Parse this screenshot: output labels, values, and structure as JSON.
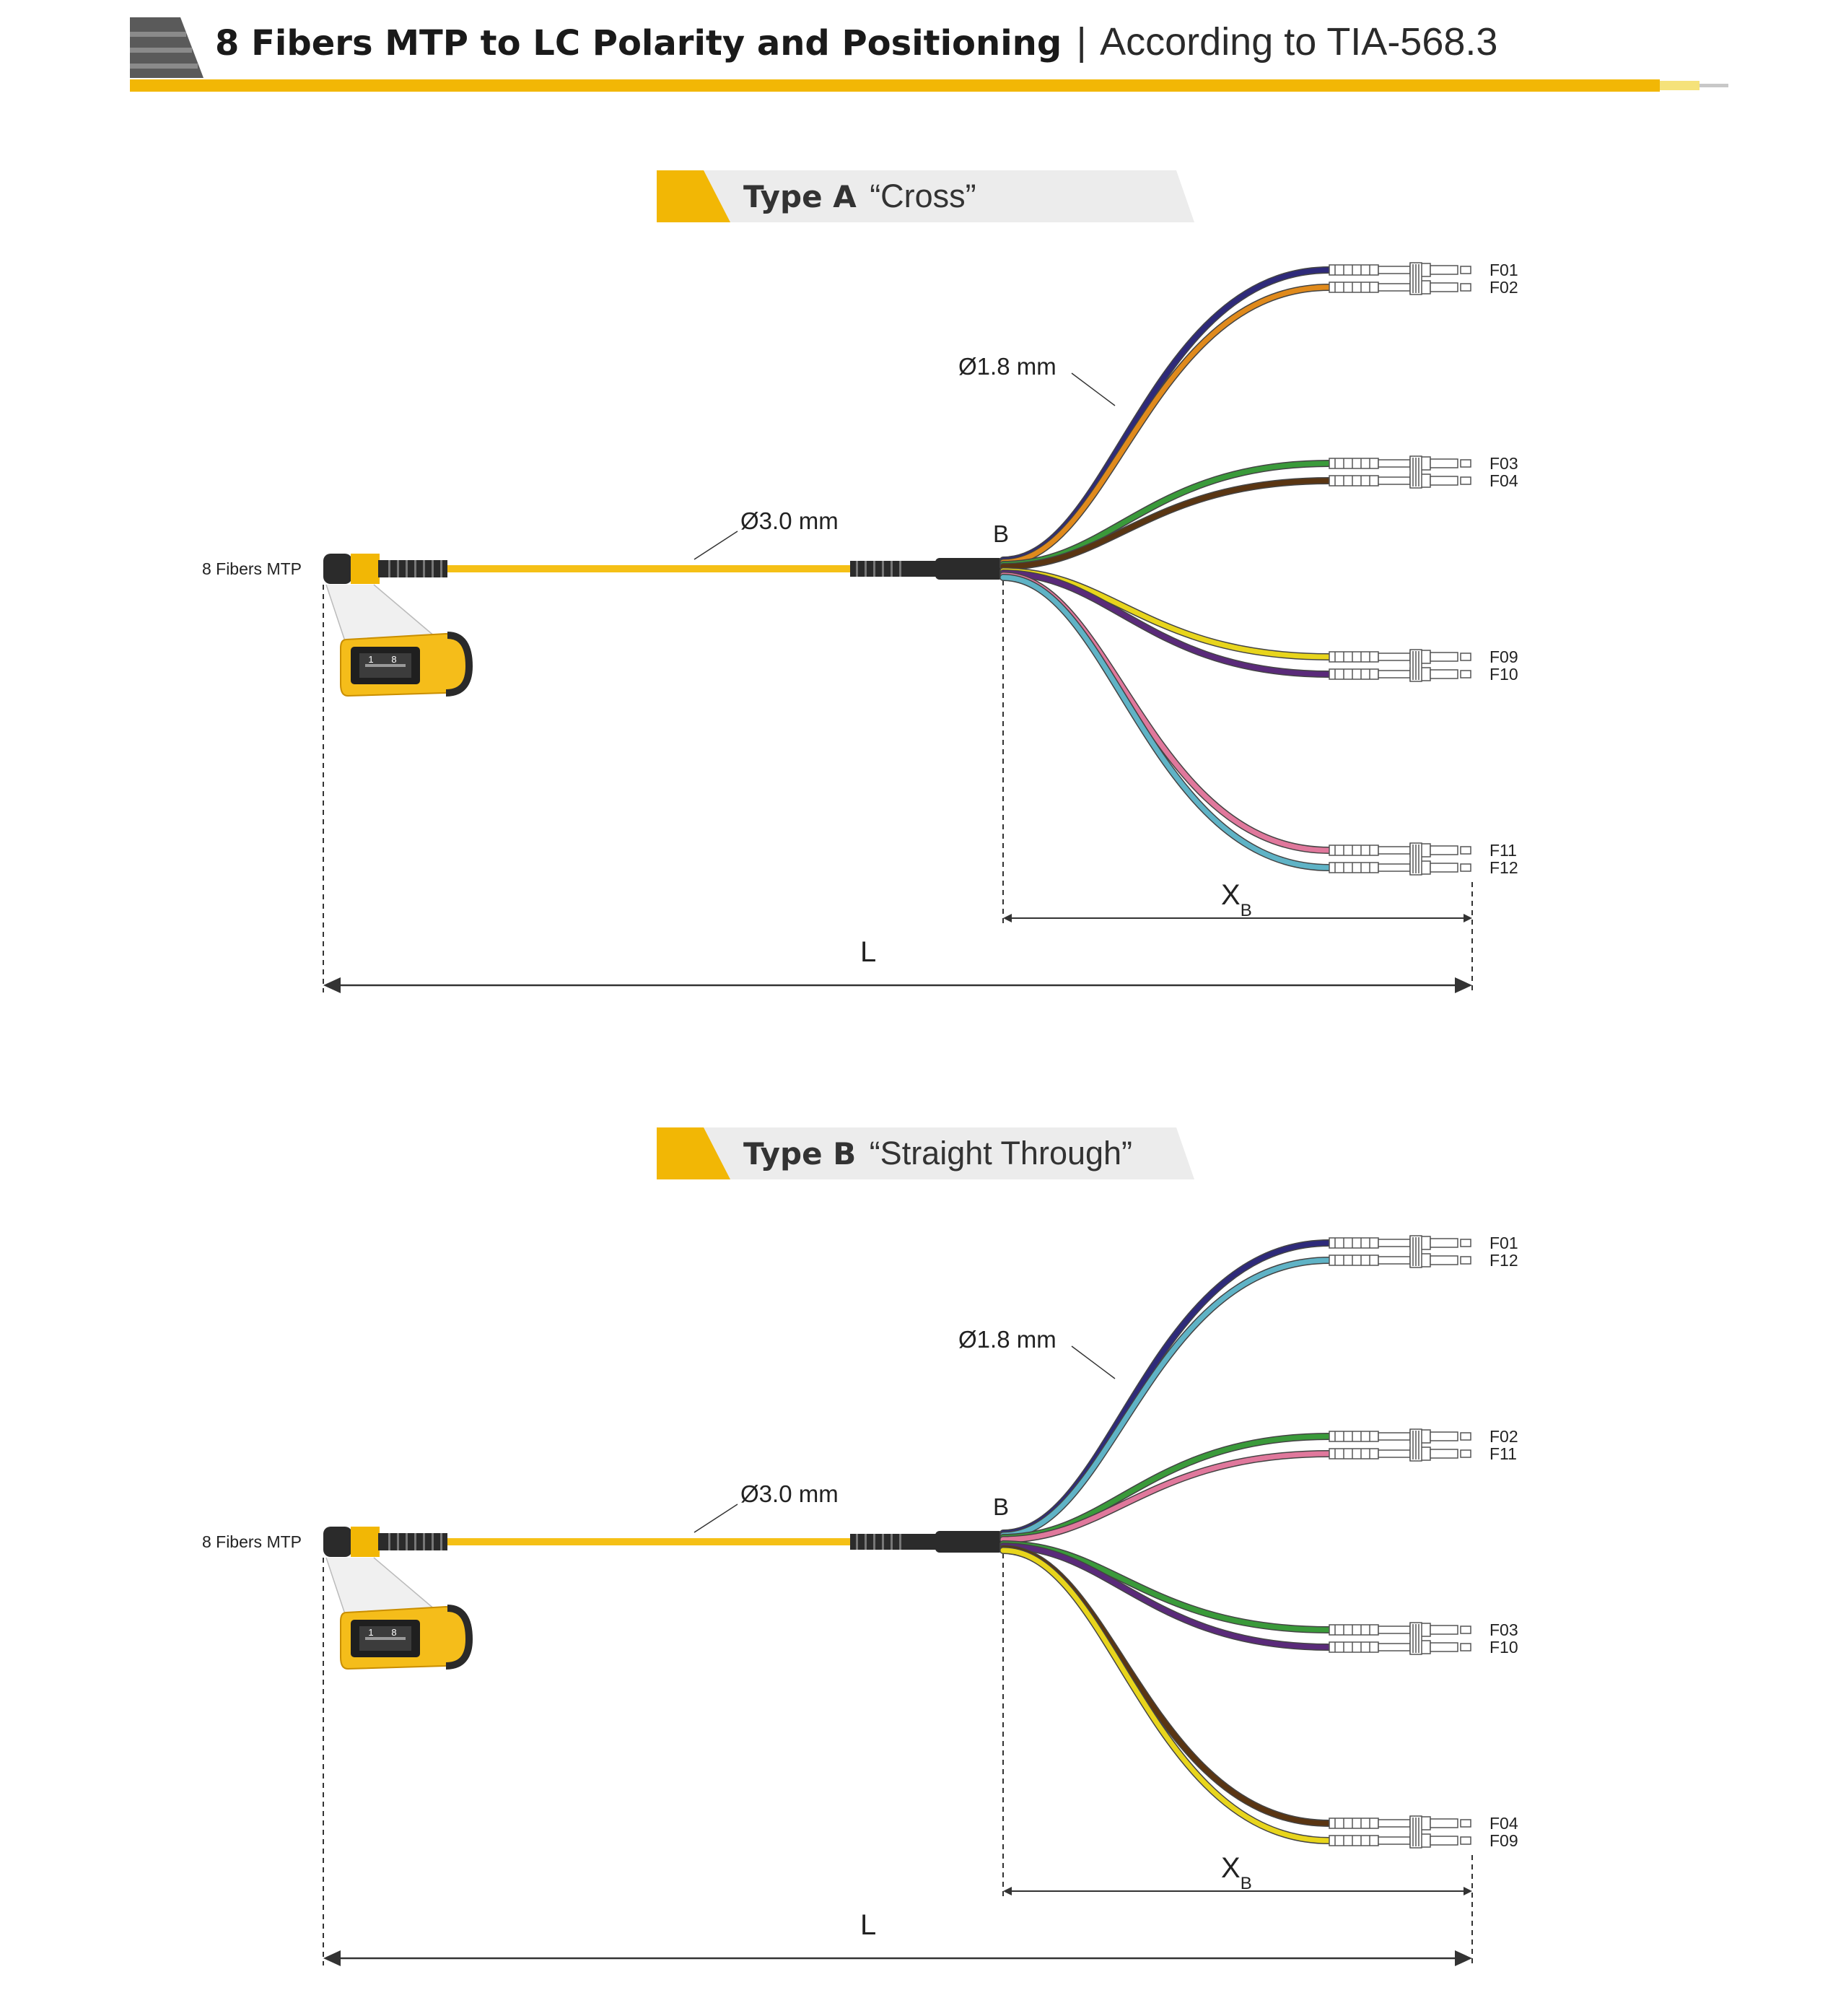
{
  "header": {
    "title_bold": "8 Fibers MTP to LC Polarity and Positioning",
    "separator": "|",
    "title_light": "According to TIA-568.3"
  },
  "colors": {
    "accent": "#f2b705",
    "banner_bg": "#ececec",
    "connector_dark": "#2b2b2b",
    "trunk_yellow": "#f5c016"
  },
  "diagrams": [
    {
      "type_bold": "Type A",
      "type_light": "“Cross”",
      "mtp_label": "8 Fibers MTP",
      "trunk_diameter": "Ø3.0 mm",
      "breakout_diameter": "Ø1.8 mm",
      "breakout_point": "B",
      "dim_xb": "X",
      "dim_xb_sub": "B",
      "dim_l": "L",
      "pin_left": "1",
      "pin_right": "8",
      "pairs": [
        {
          "top": {
            "label": "F01",
            "color": "#2e2a7a"
          },
          "bottom": {
            "label": "F02",
            "color": "#e08a1c"
          }
        },
        {
          "top": {
            "label": "F03",
            "color": "#3a9a3a"
          },
          "bottom": {
            "label": "F04",
            "color": "#5a3512"
          }
        },
        {
          "top": {
            "label": "F09",
            "color": "#e8d51c"
          },
          "bottom": {
            "label": "F10",
            "color": "#5a2a7a"
          }
        },
        {
          "top": {
            "label": "F11",
            "color": "#e0789c"
          },
          "bottom": {
            "label": "F12",
            "color": "#5fb3c6"
          }
        }
      ]
    },
    {
      "type_bold": "Type B",
      "type_light": "“Straight Through”",
      "mtp_label": "8 Fibers MTP",
      "trunk_diameter": "Ø3.0 mm",
      "breakout_diameter": "Ø1.8 mm",
      "breakout_point": "B",
      "dim_xb": "X",
      "dim_xb_sub": "B",
      "dim_l": "L",
      "pin_left": "1",
      "pin_right": "8",
      "pairs": [
        {
          "top": {
            "label": "F01",
            "color": "#2e2a7a"
          },
          "bottom": {
            "label": "F12",
            "color": "#5fb3c6"
          }
        },
        {
          "top": {
            "label": "F02",
            "color": "#3a9a3a"
          },
          "bottom": {
            "label": "F11",
            "color": "#e0789c"
          }
        },
        {
          "top": {
            "label": "F03",
            "color": "#3a9a3a"
          },
          "bottom": {
            "label": "F10",
            "color": "#5a2a7a"
          }
        },
        {
          "top": {
            "label": "F04",
            "color": "#5a3512"
          },
          "bottom": {
            "label": "F09",
            "color": "#e8d51c"
          }
        }
      ]
    }
  ]
}
